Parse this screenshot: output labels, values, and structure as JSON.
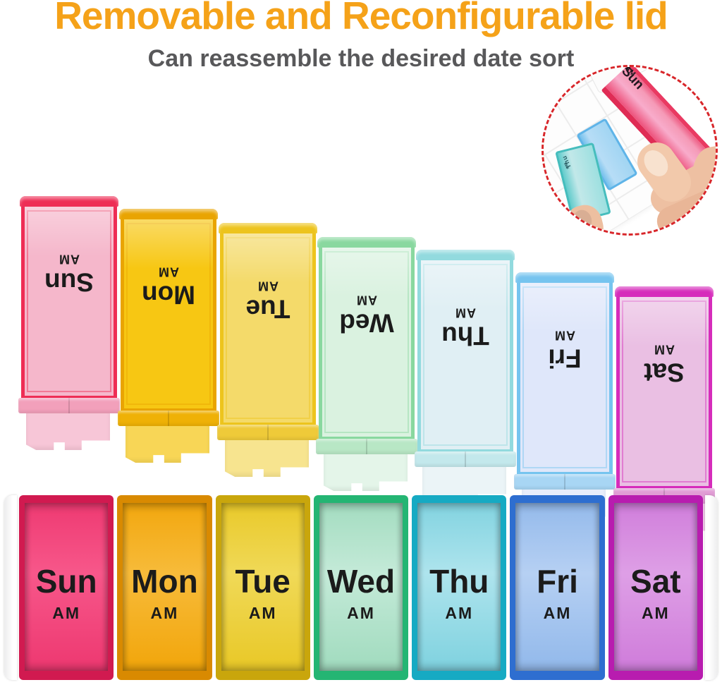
{
  "header": {
    "title": "Removable and Reconfigurable lid",
    "subtitle": "Can reassemble the desired date sort"
  },
  "colors": {
    "title": "#f5a219",
    "subtitle": "#58585a",
    "inset_ring": "#d8262a",
    "label_text": "#1b1b1b"
  },
  "inset": {
    "pulled_lid_day": "Sun",
    "pulled_lid_am": "AM",
    "small_lid_day": "Thu",
    "small_lid_am": "AM"
  },
  "top_lids": [
    {
      "day": "Sun",
      "am": "AM",
      "frame": "#ee2d55",
      "fill": "#f5b7cb",
      "collar": "#f2a0bb",
      "latch": "#f7c3d5"
    },
    {
      "day": "Mon",
      "am": "AM",
      "frame": "#e9a402",
      "fill": "#f7c713",
      "collar": "#efb106",
      "latch": "#f8d44d"
    },
    {
      "day": "Tue",
      "am": "AM",
      "frame": "#edc41d",
      "fill": "#f4da6a",
      "collar": "#efca39",
      "latch": "#f7e389"
    },
    {
      "day": "Wed",
      "am": "AM",
      "frame": "#89d89f",
      "fill": "#daf2e0",
      "collar": "#b8e7c5",
      "latch": "#e3f5e8"
    },
    {
      "day": "Thu",
      "am": "AM",
      "frame": "#92dade",
      "fill": "#e0eff4",
      "collar": "#c3e8ec",
      "latch": "#eaf4f7"
    },
    {
      "day": "Fri",
      "am": "AM",
      "frame": "#76c4ef",
      "fill": "#dfe7fa",
      "collar": "#a8d6f4",
      "latch": "#e7edfb"
    },
    {
      "day": "Sat",
      "am": "AM",
      "frame": "#d62cbb",
      "fill": "#eabfe3",
      "collar": "#e19cd5",
      "latch": "#f0cbe9"
    }
  ],
  "bottom_boxes": [
    {
      "day": "Sun",
      "am": "AM",
      "rim": "#d11a50",
      "interior": "#ee3a72",
      "glow": "#f7578a"
    },
    {
      "day": "Mon",
      "am": "AM",
      "rim": "#d98a01",
      "interior": "#f2a70e",
      "glow": "#f7bb3a"
    },
    {
      "day": "Tue",
      "am": "AM",
      "rim": "#c9a60c",
      "interior": "#e9c92a",
      "glow": "#f0d957"
    },
    {
      "day": "Wed",
      "am": "AM",
      "rim": "#24b573",
      "interior": "#a3dcc0",
      "glow": "#c4ead8"
    },
    {
      "day": "Thu",
      "am": "AM",
      "rim": "#16aac3",
      "interior": "#82d3e0",
      "glow": "#aee4ed"
    },
    {
      "day": "Fri",
      "am": "AM",
      "rim": "#2e6ed0",
      "interior": "#94baeb",
      "glow": "#b6d0f3"
    },
    {
      "day": "Sat",
      "am": "AM",
      "rim": "#b81caf",
      "interior": "#d07edb",
      "glow": "#de9fe6"
    }
  ]
}
